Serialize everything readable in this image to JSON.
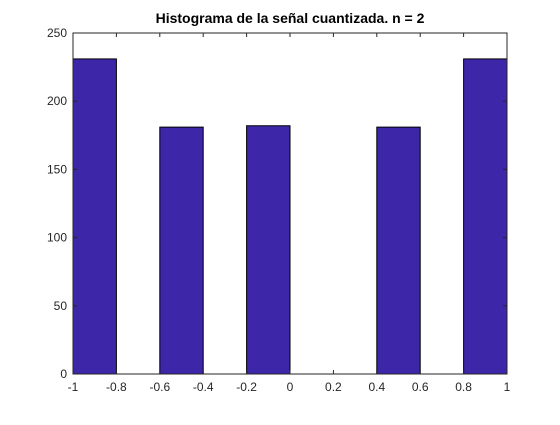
{
  "chart_data": {
    "type": "bar",
    "title": "Histograma de la señal cuantizada. n = 2",
    "xlabel": "",
    "ylabel": "",
    "xlim": [
      -1,
      1
    ],
    "ylim": [
      0,
      250
    ],
    "bin_width": 0.2,
    "x_ticks": [
      "-1",
      "-0.8",
      "-0.6",
      "-0.4",
      "-0.2",
      "0",
      "0.2",
      "0.4",
      "0.6",
      "0.8",
      "1"
    ],
    "y_ticks": [
      "0",
      "50",
      "100",
      "150",
      "200",
      "250"
    ],
    "bins": [
      {
        "x_start": -1.0,
        "x_end": -0.8,
        "value": 231
      },
      {
        "x_start": -0.8,
        "x_end": -0.6,
        "value": 0
      },
      {
        "x_start": -0.6,
        "x_end": -0.4,
        "value": 181
      },
      {
        "x_start": -0.4,
        "x_end": -0.2,
        "value": 0
      },
      {
        "x_start": -0.2,
        "x_end": 0.0,
        "value": 182
      },
      {
        "x_start": 0.0,
        "x_end": 0.2,
        "value": 0
      },
      {
        "x_start": 0.2,
        "x_end": 0.4,
        "value": 0
      },
      {
        "x_start": 0.4,
        "x_end": 0.6,
        "value": 181
      },
      {
        "x_start": 0.6,
        "x_end": 0.8,
        "value": 0
      },
      {
        "x_start": 0.8,
        "x_end": 1.0,
        "value": 231
      }
    ],
    "bar_color": "#3d26a8",
    "grid": false,
    "legend": "none"
  }
}
